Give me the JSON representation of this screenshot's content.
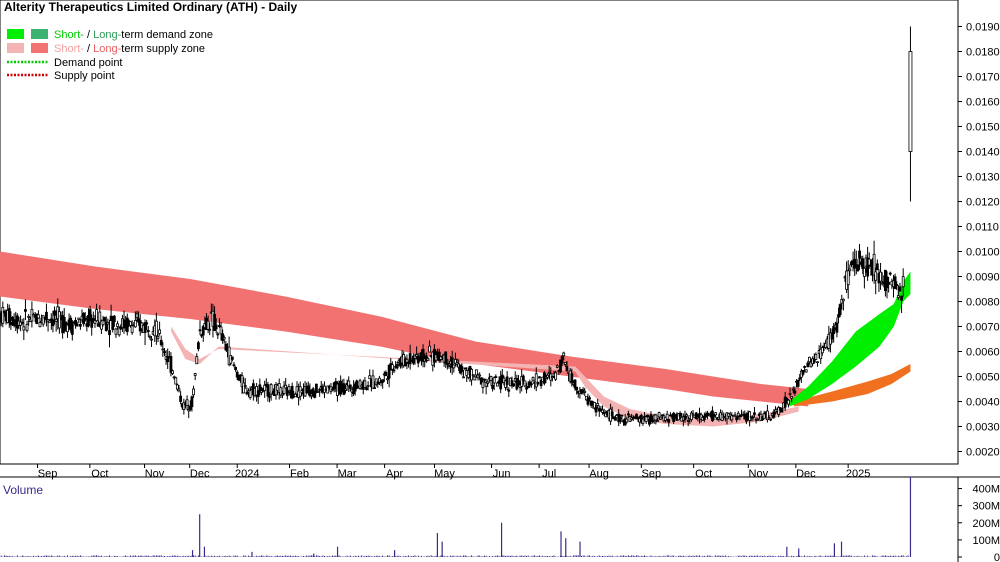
{
  "chart_data": {
    "type": "candlestick",
    "title": "Alterity Therapeutics Limited Ordinary (ATH) - Daily",
    "legend": [
      {
        "id": "demand-zone",
        "text_parts": [
          "Short-",
          " / ",
          "Long-",
          "term demand zone"
        ],
        "colors": [
          "#00ee00",
          "#3cb371"
        ]
      },
      {
        "id": "supply-zone",
        "text_parts": [
          "Short-",
          " / ",
          "Long-",
          "term supply zone"
        ],
        "colors": [
          "#f4b4b4",
          "#f27272"
        ]
      },
      {
        "id": "demand-point",
        "text": "Demand point",
        "color": "#00cc00"
      },
      {
        "id": "supply-point",
        "text": "Supply point",
        "color": "#cc0000"
      }
    ],
    "y_axis": {
      "range": [
        0.0015,
        0.0195
      ],
      "ticks": [
        "0.0020",
        "0.0030",
        "0.0040",
        "0.0050",
        "0.0060",
        "0.0070",
        "0.0080",
        "0.0090",
        "0.0100",
        "0.0110",
        "0.0120",
        "0.0130",
        "0.0140",
        "0.0150",
        "0.0160",
        "0.0170",
        "0.0180",
        "0.0190"
      ]
    },
    "x_axis": {
      "labels": [
        {
          "label": "Sep",
          "x": 2
        },
        {
          "label": "Oct",
          "x": 4.2
        },
        {
          "label": "Nov",
          "x": 6.5
        },
        {
          "label": "Dec",
          "x": 8.4
        },
        {
          "label": "2024",
          "x": 10.4
        },
        {
          "label": "Feb",
          "x": 12.6
        },
        {
          "label": "Mar",
          "x": 14.6
        },
        {
          "label": "Apr",
          "x": 16.6
        },
        {
          "label": "May",
          "x": 18.7
        },
        {
          "label": "Jun",
          "x": 21.1
        },
        {
          "label": "Jul",
          "x": 23.1
        },
        {
          "label": "Aug",
          "x": 25.2
        },
        {
          "label": "Sep",
          "x": 27.4
        },
        {
          "label": "Oct",
          "x": 29.6
        },
        {
          "label": "Nov",
          "x": 31.9
        },
        {
          "label": "Dec",
          "x": 33.9
        },
        {
          "label": "2025",
          "x": 36.1
        }
      ],
      "range": [
        0,
        40.3
      ]
    },
    "supply_zone_long": [
      [
        0,
        0.01,
        0.0082
      ],
      [
        4,
        0.0094,
        0.0077
      ],
      [
        8,
        0.0089,
        0.0073
      ],
      [
        12,
        0.0082,
        0.0068
      ],
      [
        16,
        0.0074,
        0.0062
      ],
      [
        18,
        0.0069,
        0.0058
      ],
      [
        20,
        0.0064,
        0.0055
      ],
      [
        24,
        0.0058,
        0.005
      ],
      [
        28,
        0.0053,
        0.0045
      ],
      [
        30,
        0.005,
        0.0042
      ],
      [
        32,
        0.0047,
        0.004
      ],
      [
        34,
        0.0045,
        0.0038
      ]
    ],
    "supply_zone_short": [
      [
        7.2,
        0.007,
        0.0068
      ],
      [
        7.8,
        0.0061,
        0.0057
      ],
      [
        8.4,
        0.0057,
        0.0055
      ],
      [
        9.2,
        0.0061,
        0.0062
      ],
      [
        24.2,
        0.0054,
        0.0052
      ],
      [
        24.6,
        0.005,
        0.0046
      ],
      [
        25.4,
        0.0042,
        0.0038
      ],
      [
        26.5,
        0.0037,
        0.0033
      ],
      [
        28,
        0.0034,
        0.0031
      ],
      [
        30,
        0.0033,
        0.003
      ],
      [
        32,
        0.0035,
        0.0032
      ],
      [
        33.6,
        0.0038,
        0.0036
      ]
    ],
    "demand_zone_short": [
      [
        33.2,
        0.004,
        0.0038
      ],
      [
        34,
        0.0046,
        0.0041
      ],
      [
        35,
        0.0056,
        0.0047
      ],
      [
        36,
        0.0068,
        0.0054
      ],
      [
        37,
        0.0075,
        0.0062
      ],
      [
        37.6,
        0.0079,
        0.007
      ],
      [
        38,
        0.0088,
        0.008
      ],
      [
        38.3,
        0.0092,
        0.0083
      ]
    ],
    "demand_zone_long": [
      [
        33.4,
        0.004,
        0.0038
      ],
      [
        35,
        0.0044,
        0.004
      ],
      [
        36.5,
        0.0048,
        0.0043
      ],
      [
        37.5,
        0.0051,
        0.0047
      ],
      [
        38.3,
        0.0055,
        0.0052
      ]
    ],
    "volume_axis": {
      "label": "Volume",
      "range": [
        0,
        450
      ],
      "ticks": [
        "0",
        "100M",
        "200M",
        "300M",
        "400M"
      ]
    },
    "volume_spikes": [
      [
        8.1,
        40
      ],
      [
        8.4,
        250
      ],
      [
        8.6,
        60
      ],
      [
        10.6,
        30
      ],
      [
        13.2,
        20
      ],
      [
        14.2,
        60
      ],
      [
        16.6,
        40
      ],
      [
        18.4,
        140
      ],
      [
        18.6,
        90
      ],
      [
        21.1,
        200
      ],
      [
        23.6,
        150
      ],
      [
        23.8,
        110
      ],
      [
        24.4,
        90
      ],
      [
        33.1,
        60
      ],
      [
        33.6,
        50
      ],
      [
        35.1,
        80
      ],
      [
        35.4,
        90
      ],
      [
        38.3,
        470
      ]
    ]
  }
}
